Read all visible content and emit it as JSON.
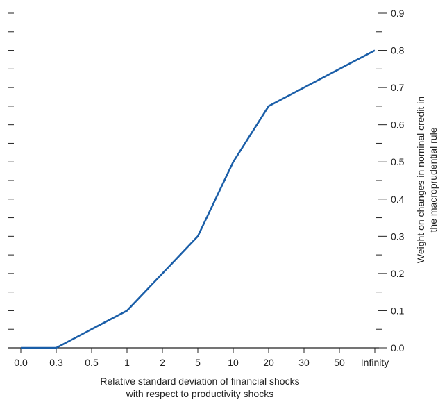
{
  "chart_data": {
    "type": "line",
    "title": "",
    "categories": [
      "0.0",
      "0.3",
      "0.5",
      "1",
      "2",
      "5",
      "10",
      "20",
      "30",
      "50",
      "Infinity"
    ],
    "series": [
      {
        "values": [
          0.0,
          0.0,
          0.05,
          0.1,
          0.2,
          0.3,
          0.5,
          0.65,
          0.7,
          0.75,
          0.8
        ]
      }
    ],
    "xlabel": [
      "Relative standard deviation of financial shocks",
      "with respect to productivity shocks"
    ],
    "ylabel": [
      "Weight on changes in nominal credit in",
      "the macroprudential rule"
    ],
    "ylim": [
      0,
      0.9
    ],
    "yticks": [
      "0.0",
      "0.1",
      "0.2",
      "0.3",
      "0.4",
      "0.5",
      "0.6",
      "0.7",
      "0.8",
      "0.9"
    ],
    "y_axis_position": "right",
    "minor_ticks_per_interval": 1,
    "grid": false,
    "line_color": "#1a5ea8",
    "axis_color": "#222222"
  }
}
